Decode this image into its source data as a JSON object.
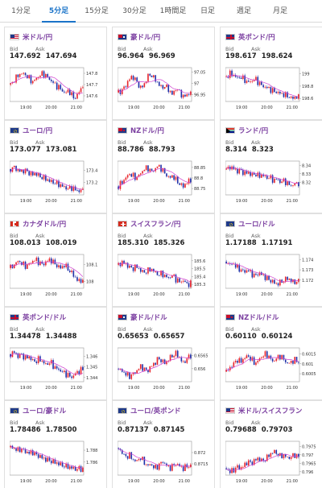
{
  "tabs": [
    {
      "label": "1分足",
      "active": false
    },
    {
      "label": "5分足",
      "active": true
    },
    {
      "label": "15分足",
      "active": false
    },
    {
      "label": "30分足",
      "active": false
    },
    {
      "label": "1時間足",
      "active": false
    },
    {
      "label": "日足",
      "active": false
    },
    {
      "label": "週足",
      "active": false
    },
    {
      "label": "月足",
      "active": false
    }
  ],
  "bid_label": "Bid",
  "ask_label": "Ask",
  "time_labels": [
    "19:00",
    "20:00",
    "21:00"
  ],
  "colors": {
    "up": "#e8232a",
    "down": "#1f2fa8",
    "ma": "#d040d0",
    "accent": "#1a73c8",
    "title": "#7b3fa0"
  },
  "pairs": [
    {
      "name": "米ドル/円",
      "flag": "us",
      "bid": "147.692",
      "ask": "147.694",
      "ticks": [
        "147.8",
        "147.7",
        "147.6"
      ],
      "ylim": [
        147.55,
        147.85
      ],
      "trend": [
        147.7,
        147.74,
        147.78,
        147.8,
        147.79,
        147.76,
        147.72,
        147.75,
        147.78,
        147.8,
        147.77,
        147.74,
        147.71,
        147.68,
        147.66,
        147.62,
        147.65,
        147.6,
        147.58,
        147.64,
        147.69
      ]
    },
    {
      "name": "豪ドル/円",
      "flag": "au",
      "bid": "96.964",
      "ask": "96.969",
      "ticks": [
        "97.05",
        "97",
        "96.95"
      ],
      "ylim": [
        96.92,
        97.07
      ],
      "trend": [
        96.96,
        96.97,
        96.99,
        97.02,
        97.03,
        97.01,
        96.98,
        96.99,
        97.03,
        97.04,
        97.02,
        97.0,
        96.98,
        96.99,
        96.97,
        96.95,
        96.98,
        96.96,
        96.94,
        96.95,
        96.96
      ]
    },
    {
      "name": "英ポンド/円",
      "flag": "gb",
      "bid": "198.617",
      "ask": "198.624",
      "ticks": [
        "199",
        "198.8",
        "198.6"
      ],
      "ylim": [
        198.55,
        199.1
      ],
      "trend": [
        198.95,
        199.0,
        198.98,
        198.93,
        198.95,
        198.9,
        198.86,
        198.88,
        198.92,
        198.85,
        198.8,
        198.78,
        198.75,
        198.72,
        198.7,
        198.68,
        198.66,
        198.64,
        198.6,
        198.62,
        198.62
      ]
    },
    {
      "name": "ユーロ/円",
      "flag": "eu",
      "bid": "173.077",
      "ask": "173.081",
      "ticks": [
        "173.4",
        "173.2"
      ],
      "ylim": [
        173.0,
        173.55
      ],
      "trend": [
        173.42,
        173.45,
        173.4,
        173.38,
        173.4,
        173.36,
        173.33,
        173.35,
        173.3,
        173.28,
        173.25,
        173.22,
        173.2,
        173.18,
        173.15,
        173.12,
        173.1,
        173.12,
        173.08,
        173.06,
        173.08
      ]
    },
    {
      "name": "NZドル/円",
      "flag": "nz",
      "bid": "88.786",
      "ask": "88.793",
      "ticks": [
        "88.85",
        "88.8",
        "88.75"
      ],
      "ylim": [
        88.72,
        88.88
      ],
      "trend": [
        88.76,
        88.78,
        88.8,
        88.82,
        88.81,
        88.8,
        88.82,
        88.84,
        88.85,
        88.83,
        88.84,
        88.86,
        88.84,
        88.82,
        88.8,
        88.81,
        88.79,
        88.77,
        88.76,
        88.78,
        88.79
      ]
    },
    {
      "name": "ランド/円",
      "flag": "za",
      "bid": "8.314",
      "ask": "8.323",
      "ticks": [
        "8.34",
        "8.33",
        "8.32"
      ],
      "ylim": [
        8.305,
        8.345
      ],
      "trend": [
        8.335,
        8.338,
        8.336,
        8.333,
        8.334,
        8.33,
        8.332,
        8.328,
        8.33,
        8.327,
        8.329,
        8.325,
        8.326,
        8.322,
        8.324,
        8.32,
        8.322,
        8.318,
        8.316,
        8.318,
        8.319
      ]
    },
    {
      "name": "カナダドル/円",
      "flag": "ca",
      "bid": "108.013",
      "ask": "108.019",
      "ticks": [
        "108.1",
        "108"
      ],
      "ylim": [
        107.96,
        108.16
      ],
      "trend": [
        108.08,
        108.1,
        108.12,
        108.11,
        108.09,
        108.1,
        108.12,
        108.13,
        108.11,
        108.1,
        108.12,
        108.13,
        108.11,
        108.09,
        108.08,
        108.1,
        108.07,
        108.05,
        108.02,
        108.0,
        108.01
      ]
    },
    {
      "name": "スイスフラン/円",
      "flag": "ch",
      "bid": "185.310",
      "ask": "185.326",
      "ticks": [
        "185.6",
        "185.5",
        "185.4",
        "185.3"
      ],
      "ylim": [
        185.25,
        185.68
      ],
      "trend": [
        185.55,
        185.58,
        185.56,
        185.52,
        185.5,
        185.53,
        185.48,
        185.45,
        185.47,
        185.5,
        185.46,
        185.42,
        185.44,
        185.4,
        185.38,
        185.42,
        185.36,
        185.33,
        185.35,
        185.3,
        185.31
      ]
    },
    {
      "name": "ユーロ/ドル",
      "flag": "eu",
      "bid": "1.17188",
      "ask": "1.17191",
      "ticks": [
        "1.174",
        "1.173",
        "1.172"
      ],
      "ylim": [
        1.1712,
        1.1745
      ],
      "trend": [
        1.1738,
        1.1735,
        1.1736,
        1.1732,
        1.173,
        1.1728,
        1.173,
        1.1726,
        1.1724,
        1.1727,
        1.1725,
        1.1722,
        1.172,
        1.1718,
        1.1716,
        1.1718,
        1.172,
        1.1722,
        1.1719,
        1.1718,
        1.1719
      ]
    },
    {
      "name": "英ポンド/ドル",
      "flag": "gb",
      "bid": "1.34478",
      "ask": "1.34488",
      "ticks": [
        "1.346",
        "1.345",
        "1.344"
      ],
      "ylim": [
        1.3436,
        1.3468
      ],
      "trend": [
        1.3462,
        1.3464,
        1.346,
        1.3462,
        1.3458,
        1.346,
        1.3456,
        1.3455,
        1.3458,
        1.3454,
        1.3452,
        1.3455,
        1.345,
        1.3448,
        1.3446,
        1.3444,
        1.3442,
        1.344,
        1.3444,
        1.3446,
        1.3448
      ]
    },
    {
      "name": "豪ドル/ドル",
      "flag": "au",
      "bid": "0.65653",
      "ask": "0.65657",
      "ticks": [
        "0.6565",
        "0.656"
      ],
      "ylim": [
        0.6555,
        0.6568
      ],
      "trend": [
        0.656,
        0.6559,
        0.6558,
        0.6557,
        0.6558,
        0.6559,
        0.6561,
        0.656,
        0.6559,
        0.6561,
        0.6562,
        0.6564,
        0.6563,
        0.6562,
        0.6564,
        0.6565,
        0.6566,
        0.6564,
        0.6562,
        0.6564,
        0.6565
      ]
    },
    {
      "name": "NZドル/ドル",
      "flag": "nz",
      "bid": "0.60110",
      "ask": "0.60124",
      "ticks": [
        "0.6015",
        "0.601",
        "0.6005"
      ],
      "ylim": [
        0.6001,
        0.6018
      ],
      "trend": [
        0.6006,
        0.6008,
        0.601,
        0.6012,
        0.6011,
        0.6013,
        0.6014,
        0.6012,
        0.601,
        0.6012,
        0.6014,
        0.6015,
        0.6013,
        0.6011,
        0.6013,
        0.6014,
        0.6012,
        0.601,
        0.6011,
        0.6012,
        0.6011
      ]
    },
    {
      "name": "ユーロ/豪ドル",
      "flag": "eu",
      "bid": "1.78486",
      "ask": "1.78500",
      "ticks": [
        "1.788",
        "1.786"
      ],
      "ylim": [
        1.7838,
        1.7895
      ],
      "trend": [
        1.7885,
        1.7883,
        1.788,
        1.7882,
        1.7878,
        1.7875,
        1.7877,
        1.7872,
        1.787,
        1.7866,
        1.7864,
        1.7862,
        1.786,
        1.7858,
        1.7855,
        1.7853,
        1.7852,
        1.785,
        1.7848,
        1.7849,
        1.7848
      ]
    },
    {
      "name": "ユーロ/英ポンド",
      "flag": "eu",
      "bid": "0.87137",
      "ask": "0.87145",
      "ticks": [
        "0.872",
        "0.8715"
      ],
      "ylim": [
        0.871,
        0.8725
      ],
      "trend": [
        0.8722,
        0.872,
        0.8718,
        0.8719,
        0.8717,
        0.8716,
        0.8718,
        0.8716,
        0.8714,
        0.8715,
        0.8713,
        0.8714,
        0.8716,
        0.8715,
        0.8713,
        0.8714,
        0.8715,
        0.8714,
        0.8713,
        0.8714,
        0.8714
      ]
    },
    {
      "name": "米ドル/スイスフラン",
      "flag": "us",
      "bid": "0.79688",
      "ask": "0.79703",
      "ticks": [
        "0.7975",
        "0.797",
        "0.7965",
        "0.796"
      ],
      "ylim": [
        0.7958,
        0.7978
      ],
      "trend": [
        0.7962,
        0.796,
        0.7961,
        0.7963,
        0.7962,
        0.7964,
        0.7966,
        0.7965,
        0.7967,
        0.7968,
        0.7966,
        0.7968,
        0.797,
        0.7972,
        0.7971,
        0.7969,
        0.797,
        0.7968,
        0.7969,
        0.797,
        0.7969
      ]
    }
  ]
}
